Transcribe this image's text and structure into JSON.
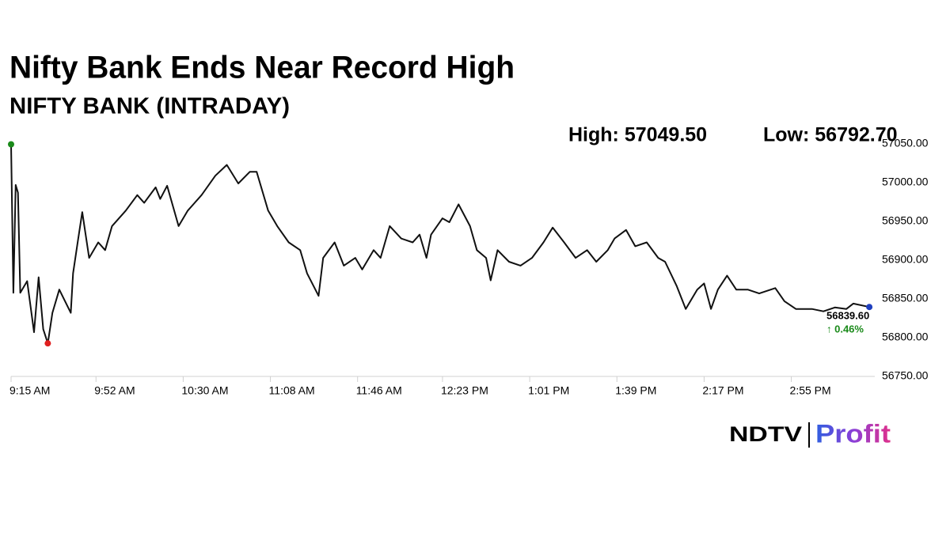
{
  "chart_data": {
    "type": "line",
    "title": "Nifty Bank Ends Near Record High",
    "subtitle": "NIFTY BANK (INTRADAY)",
    "high_label": "High: 57049.50",
    "low_label": "Low: 56792.70",
    "close_label": "56839.60",
    "change_label": "↑ 0.46%",
    "color": "#111111",
    "marker_colors": {
      "high": "#1a8a1a",
      "low": "#e02020",
      "close": "#1f3fbf"
    },
    "x": [
      "9:15 AM",
      "9:16 AM",
      "9:17 AM",
      "9:18 AM",
      "9:19 AM",
      "9:22 AM",
      "9:25 AM",
      "9:27 AM",
      "9:29 AM",
      "9:31 AM",
      "9:33 AM",
      "9:36 AM",
      "9:41 AM",
      "9:42 AM",
      "9:44 AM",
      "9:46 AM",
      "9:49 AM",
      "9:53 AM",
      "9:56 AM",
      "9:59 AM",
      "10:05 AM",
      "10:10 AM",
      "10:13 AM",
      "10:18 AM",
      "10:20 AM",
      "10:23 AM",
      "10:28 AM",
      "10:32 AM",
      "10:35 AM",
      "10:38 AM",
      "10:44 AM",
      "10:49 AM",
      "10:54 AM",
      "10:59 AM",
      "11:02 AM",
      "11:07 AM",
      "11:11 AM",
      "11:16 AM",
      "11:21 AM",
      "11:24 AM",
      "11:29 AM",
      "11:31 AM",
      "11:36 AM",
      "11:40 AM",
      "11:45 AM",
      "11:48 AM",
      "11:53 AM",
      "11:56 AM",
      "12:00 PM",
      "12:05 PM",
      "12:10 PM",
      "12:13 PM",
      "12:16 PM",
      "12:18 PM",
      "12:23 PM",
      "12:26 PM",
      "12:30 PM",
      "12:35 PM",
      "12:38 PM",
      "12:42 PM",
      "12:44 PM",
      "12:47 PM",
      "12:52 PM",
      "12:57 PM",
      "1:02 PM",
      "1:07 PM",
      "1:11 PM",
      "1:16 PM",
      "1:21 PM",
      "1:26 PM",
      "1:30 PM",
      "1:35 PM",
      "1:38 PM",
      "1:43 PM",
      "1:47 PM",
      "1:52 PM",
      "1:57 PM",
      "2:00 PM",
      "2:05 PM",
      "2:09 PM",
      "2:14 PM",
      "2:17 PM",
      "2:20 PM",
      "2:23 PM",
      "2:27 PM",
      "2:31 PM",
      "2:36 PM",
      "2:41 PM",
      "2:48 PM",
      "2:52 PM",
      "2:57 PM",
      "3:04 PM",
      "3:09 PM",
      "3:14 PM",
      "3:19 PM",
      "3:22 PM",
      "3:29 PM"
    ],
    "values": [
      57049.5,
      56858,
      56997,
      56987,
      56858,
      56873,
      56807,
      56878,
      56811,
      56792.7,
      56832,
      56862,
      56832,
      56883,
      56923,
      56962,
      56903,
      56923,
      56913,
      56944,
      56964,
      56984,
      56974,
      56994,
      56979,
      56996,
      56944,
      56964,
      56974,
      56984,
      57009,
      57023,
      56999,
      57014,
      57014,
      56964,
      56944,
      56923,
      56913,
      56883,
      56854,
      56903,
      56923,
      56893,
      56903,
      56888,
      56913,
      56903,
      56944,
      56928,
      56923,
      56933,
      56903,
      56933,
      56954,
      56949,
      56972,
      56944,
      56913,
      56903,
      56874,
      56913,
      56898,
      56893,
      56903,
      56923,
      56942,
      56923,
      56903,
      56913,
      56898,
      56913,
      56928,
      56939,
      56918,
      56923,
      56903,
      56898,
      56867,
      56837,
      56862,
      56870,
      56837,
      56862,
      56880,
      56862,
      56862,
      56857,
      56864,
      56847,
      56837,
      56837,
      56834,
      56839,
      56837,
      56844,
      56839.6
    ],
    "xlim": [
      "9:15 AM",
      "3:30 PM"
    ],
    "xticks": [
      "9:15 AM",
      "9:52 AM",
      "10:30 AM",
      "11:08 AM",
      "11:46 AM",
      "12:23 PM",
      "1:01 PM",
      "1:39 PM",
      "2:17 PM",
      "2:55 PM"
    ],
    "ylim": [
      56750,
      57050
    ],
    "yticks": [
      {
        "value": 56750,
        "label": "56750.00"
      },
      {
        "value": 56800,
        "label": "56800.00"
      },
      {
        "value": 56850,
        "label": "56850.00"
      },
      {
        "value": 56900,
        "label": "56900.00"
      },
      {
        "value": 56950,
        "label": "56950.00"
      },
      {
        "value": 57000,
        "label": "57000.00"
      },
      {
        "value": 57050,
        "label": "57050.00"
      }
    ]
  },
  "logo": {
    "left": "NDTV",
    "right": "Profit"
  }
}
